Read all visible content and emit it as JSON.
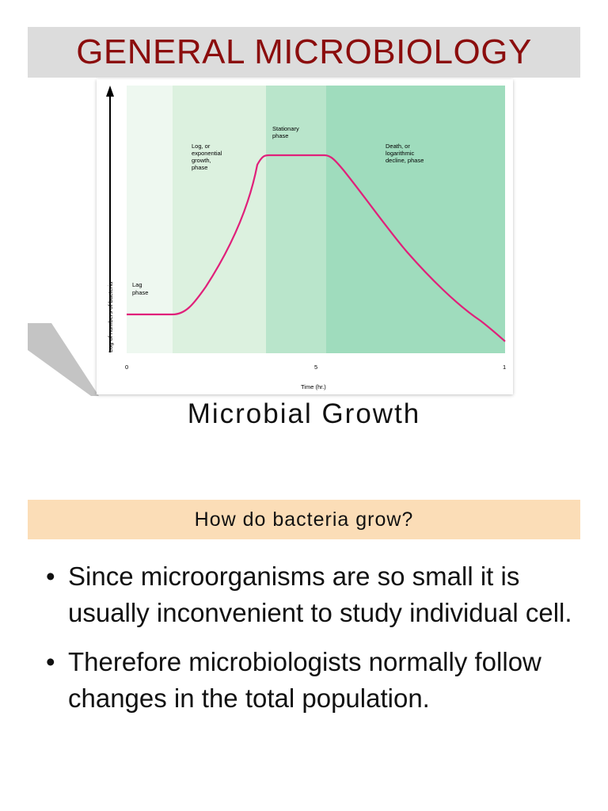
{
  "header": {
    "title": "GENERAL MICROBIOLOGY"
  },
  "figure": {
    "phases": [
      {
        "label_lines": [
          "Lag",
          "phase"
        ],
        "color": "#eef8f0"
      },
      {
        "label_lines": [
          "Log, or",
          "exponential",
          "growth,",
          "phase"
        ],
        "color": "#dcf1df"
      },
      {
        "label_lines": [
          "Stationary",
          "phase"
        ],
        "color": "#b9e5cb"
      },
      {
        "label_lines": [
          "Death, or",
          "logarithmic",
          "decline, phase"
        ],
        "color": "#9fdcbd"
      }
    ],
    "ylabel": "Log of numbers of bacteria",
    "xlabel": "Time (hr.)",
    "xticks": [
      "0",
      "5",
      "1"
    ],
    "curve_color": "#e0207a"
  },
  "subtitle": "Microbial Growth",
  "question": "How do bacteria grow?",
  "bullets": [
    "Since microorganisms are so small it is usually inconvenient to study individual cell.",
    "Therefore microbiologists normally follow changes in the total population."
  ]
}
